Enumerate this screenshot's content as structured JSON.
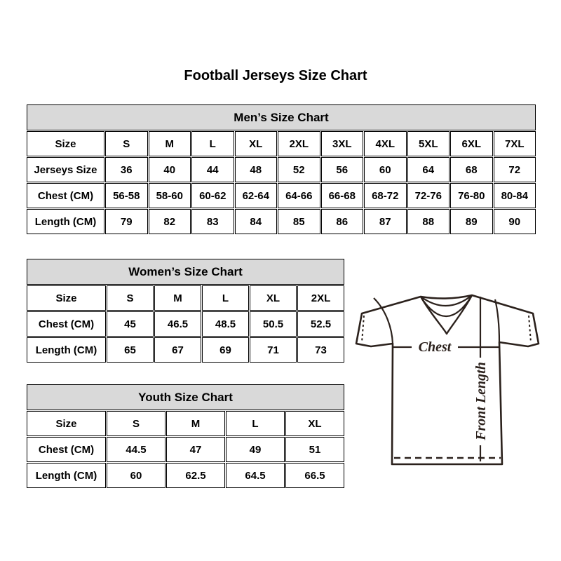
{
  "page": {
    "title": "Football Jerseys Size Chart"
  },
  "chart_data": [
    {
      "type": "table",
      "key": "men",
      "title": "Men’s Size Chart",
      "columns": [
        "Size",
        "S",
        "M",
        "L",
        "XL",
        "2XL",
        "3XL",
        "4XL",
        "5XL",
        "6XL",
        "7XL"
      ],
      "rows": [
        [
          "Jerseys Size",
          "36",
          "40",
          "44",
          "48",
          "52",
          "56",
          "60",
          "64",
          "68",
          "72"
        ],
        [
          "Chest (CM)",
          "56-58",
          "58-60",
          "60-62",
          "62-64",
          "64-66",
          "66-68",
          "68-72",
          "72-76",
          "76-80",
          "80-84"
        ],
        [
          "Length (CM)",
          "79",
          "82",
          "83",
          "84",
          "85",
          "86",
          "87",
          "88",
          "89",
          "90"
        ]
      ]
    },
    {
      "type": "table",
      "key": "women",
      "title": "Women’s Size Chart",
      "columns": [
        "Size",
        "S",
        "M",
        "L",
        "XL",
        "2XL"
      ],
      "rows": [
        [
          "Chest (CM)",
          "45",
          "46.5",
          "48.5",
          "50.5",
          "52.5"
        ],
        [
          "Length (CM)",
          "65",
          "67",
          "69",
          "71",
          "73"
        ]
      ]
    },
    {
      "type": "table",
      "key": "youth",
      "title": "Youth Size Chart",
      "columns": [
        "Size",
        "S",
        "M",
        "L",
        "XL"
      ],
      "rows": [
        [
          "Chest (CM)",
          "44.5",
          "47",
          "49",
          "51"
        ],
        [
          "Length (CM)",
          "60",
          "62.5",
          "64.5",
          "66.5"
        ]
      ]
    }
  ],
  "diagram": {
    "chest_label": "Chest",
    "front_length_label": "Front Length"
  },
  "colors": {
    "table_border": "#000000",
    "table_header_bg": "#d9d9d9",
    "text": "#000000",
    "jersey_line": "#2b211c"
  }
}
